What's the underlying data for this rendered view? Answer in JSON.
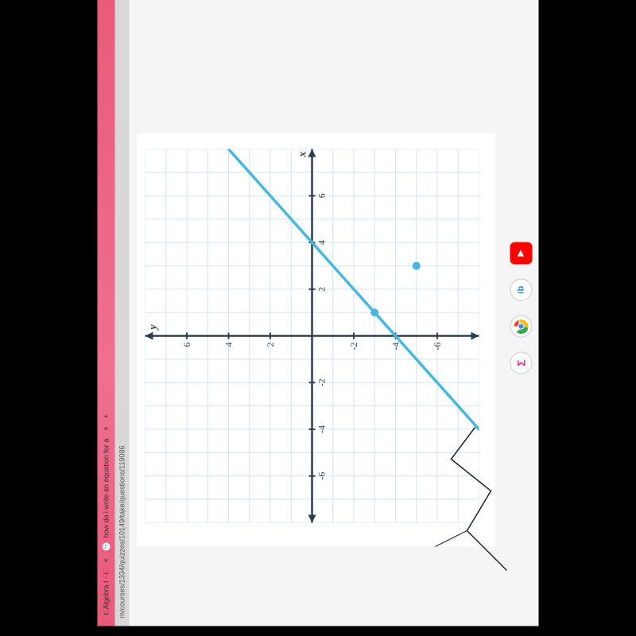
{
  "browser": {
    "tabs": [
      {
        "label": "t: Algebra I - I.",
        "close": "×"
      },
      {
        "label": "how do i write an equation for a",
        "close": "×"
      }
    ],
    "new_tab": "+",
    "url": "m/courses/1334/quizzes/10149/take/questions/119086"
  },
  "chart": {
    "type": "line",
    "x_label": "x",
    "y_label": "y",
    "xlim": [
      -8,
      8
    ],
    "ylim": [
      -8,
      8
    ],
    "x_ticks": [
      -6,
      -4,
      -2,
      2,
      4,
      6
    ],
    "y_ticks": [
      -6,
      -4,
      -2,
      2,
      4,
      6
    ],
    "grid_color": "#d4e3f0",
    "axis_color": "#2c3e50",
    "line_color": "#46b8e0",
    "point_color": "#46b8e0",
    "line_width": 3.5,
    "background_color": "#ffffff",
    "label_fontsize": 14,
    "tick_fontsize": 12,
    "line_points": [
      [
        -8,
        -12
      ],
      [
        10,
        6
      ]
    ],
    "marked_points": [
      [
        1,
        -3
      ],
      [
        3,
        -5
      ]
    ]
  },
  "dock": {
    "icons": [
      {
        "name": "sigma",
        "symbol": "Σ",
        "bg": "#ffffff",
        "color": "#d63384",
        "border": "#ccc"
      },
      {
        "name": "chrome",
        "symbol": "●",
        "bg": "#ffffff",
        "color": "#4285f4",
        "border": "#ccc"
      },
      {
        "name": "ib",
        "symbol": "ib",
        "bg": "#ffffff",
        "color": "#1e88e5",
        "border": "#ccc"
      },
      {
        "name": "youtube",
        "symbol": "▶",
        "bg": "#ff0000",
        "color": "#ffffff",
        "border": "#ff0000"
      }
    ]
  }
}
